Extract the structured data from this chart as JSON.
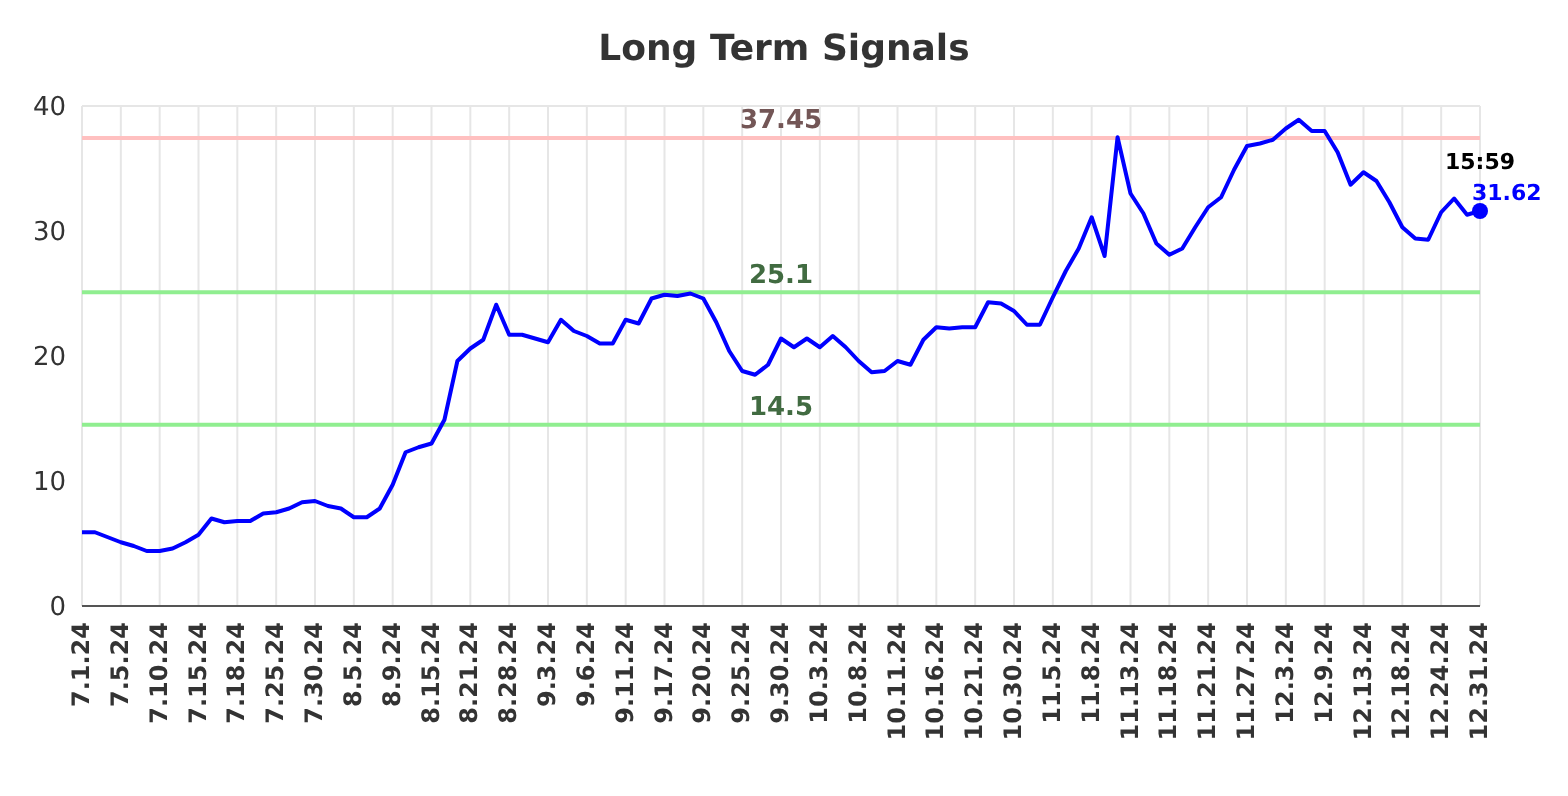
{
  "chart_data": {
    "type": "line",
    "title": "Long Term Signals",
    "categories": [
      "7.1.24",
      null,
      null,
      "7.5.24",
      null,
      null,
      "7.10.24",
      null,
      null,
      "7.15.24",
      null,
      null,
      "7.18.24",
      null,
      null,
      "7.25.24",
      null,
      null,
      "7.30.24",
      null,
      null,
      "8.5.24",
      null,
      null,
      "8.9.24",
      null,
      null,
      "8.15.24",
      null,
      null,
      "8.21.24",
      null,
      null,
      "8.28.24",
      null,
      null,
      "9.3.24",
      null,
      null,
      "9.6.24",
      null,
      null,
      "9.11.24",
      null,
      null,
      "9.17.24",
      null,
      null,
      "9.20.24",
      null,
      null,
      "9.25.24",
      null,
      null,
      "9.30.24",
      null,
      null,
      "10.3.24",
      null,
      null,
      "10.8.24",
      null,
      null,
      "10.11.24",
      null,
      null,
      "10.16.24",
      null,
      null,
      "10.21.24",
      null,
      null,
      "10.30.24",
      null,
      null,
      "11.5.24",
      null,
      null,
      "11.8.24",
      null,
      null,
      "11.13.24",
      null,
      null,
      "11.18.24",
      null,
      null,
      "11.21.24",
      null,
      null,
      "11.27.24",
      null,
      null,
      "12.3.24",
      null,
      null,
      "12.9.24",
      null,
      null,
      "12.13.24",
      null,
      null,
      "12.18.24",
      null,
      null,
      "12.24.24",
      null,
      null,
      "12.31.24"
    ],
    "series": [
      {
        "color": "#0000ff",
        "values": [
          5.9,
          5.9,
          5.5,
          5.1,
          4.8,
          4.4,
          4.4,
          4.6,
          5.1,
          5.7,
          7.0,
          6.7,
          6.8,
          6.8,
          7.4,
          7.5,
          7.8,
          8.3,
          8.4,
          8.0,
          7.8,
          7.1,
          7.1,
          7.8,
          9.7,
          12.3,
          12.7,
          13.0,
          14.9,
          19.6,
          20.6,
          21.3,
          24.1,
          21.7,
          21.7,
          21.4,
          21.1,
          22.9,
          22.0,
          21.6,
          21.0,
          21.0,
          22.9,
          22.6,
          24.6,
          24.9,
          24.8,
          25.0,
          24.6,
          22.7,
          20.4,
          18.8,
          18.5,
          19.3,
          21.4,
          20.7,
          21.4,
          20.7,
          21.6,
          20.7,
          19.6,
          18.7,
          18.8,
          19.6,
          19.3,
          21.3,
          22.3,
          22.2,
          22.3,
          22.3,
          24.3,
          24.2,
          23.6,
          22.5,
          22.5,
          24.7,
          26.8,
          28.6,
          31.1,
          28.0,
          37.5,
          33.0,
          31.4,
          29.0,
          28.1,
          28.6,
          30.3,
          31.9,
          32.7,
          34.9,
          36.8,
          37.0,
          37.3,
          38.2,
          38.9,
          38.0,
          38.0,
          36.3,
          33.7,
          34.7,
          34.0,
          32.3,
          30.3,
          29.4,
          29.3,
          31.5,
          32.6,
          31.3,
          31.6
        ]
      }
    ],
    "ylim": [
      0,
      40
    ],
    "yticks": [
      0,
      10,
      20,
      30,
      40
    ],
    "grid": true,
    "marker": "none",
    "line_style": "solid",
    "ref_lines": [
      {
        "axis": "y",
        "value": 37.45,
        "label": "37.45",
        "color": "#ffc0c0"
      },
      {
        "axis": "y",
        "value": 25.1,
        "label": "25.1",
        "color": "#90ee90"
      },
      {
        "axis": "y",
        "value": 14.5,
        "label": "14.5",
        "color": "#90ee90"
      }
    ],
    "annotations": [
      {
        "text": "15:59",
        "x": "12.31.24",
        "y": 31.6
      },
      "31.62"
    ]
  }
}
